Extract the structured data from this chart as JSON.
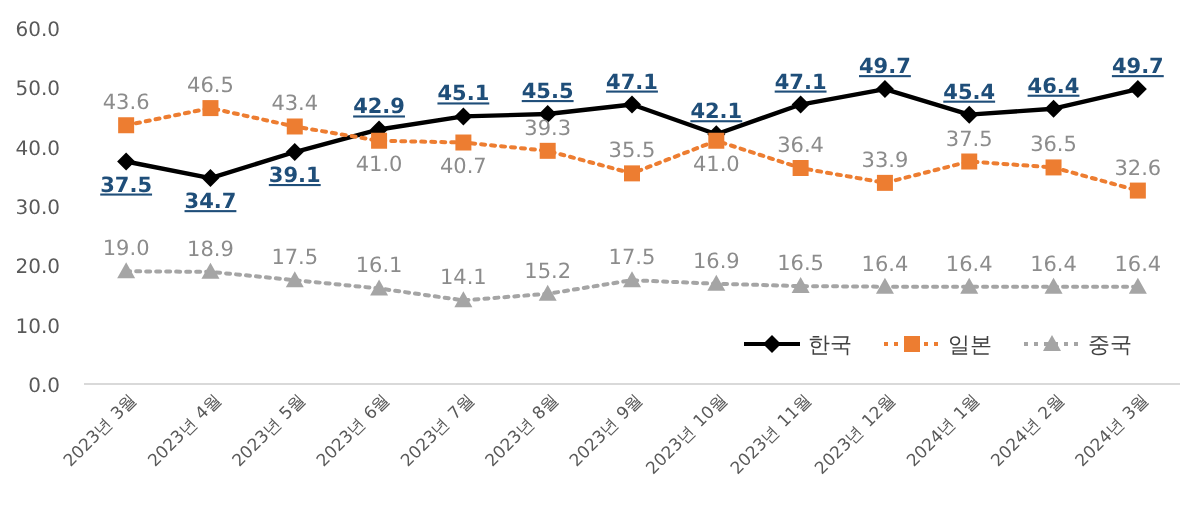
{
  "chart_data": {
    "type": "line",
    "categories": [
      "2023년 3월",
      "2023년 4월",
      "2023년 5월",
      "2023년 6월",
      "2023년 7월",
      "2023년 8월",
      "2023년 9월",
      "2023년 10월",
      "2023년 11월",
      "2023년 12월",
      "2024년 1월",
      "2024년 2월",
      "2024년 3월"
    ],
    "series": [
      {
        "name": "한국",
        "color": "#000000",
        "marker": "diamond",
        "line_style": "solid",
        "values": [
          37.5,
          34.7,
          39.1,
          42.9,
          45.1,
          45.5,
          47.1,
          42.1,
          47.1,
          49.7,
          45.4,
          46.4,
          49.7
        ],
        "value_labels": [
          "37.5",
          "34.7",
          "39.1",
          "42.9",
          "45.1",
          "45.5",
          "47.1",
          "42.1",
          "47.1",
          "49.7",
          "45.4",
          "46.4",
          "49.7"
        ]
      },
      {
        "name": "일본",
        "color": "#ed7d31",
        "marker": "square",
        "line_style": "dotted",
        "values": [
          43.6,
          46.5,
          43.4,
          41.0,
          40.7,
          39.3,
          35.5,
          41.0,
          36.4,
          33.9,
          37.5,
          36.5,
          32.6
        ],
        "value_labels": [
          "43.6",
          "46.5",
          "43.4",
          "41.0",
          "40.7",
          "39.3",
          "35.5",
          "41.0",
          "36.4",
          "33.9",
          "37.5",
          "36.5",
          "32.6"
        ]
      },
      {
        "name": "중국",
        "color": "#a5a5a5",
        "marker": "triangle",
        "line_style": "dotted",
        "values": [
          19.0,
          18.9,
          17.5,
          16.1,
          14.1,
          15.2,
          17.5,
          16.9,
          16.5,
          16.4,
          16.4,
          16.4,
          16.4
        ],
        "value_labels": [
          "19.0",
          "18.9",
          "17.5",
          "16.1",
          "14.1",
          "15.2",
          "17.5",
          "16.9",
          "16.5",
          "16.4",
          "16.4",
          "16.4",
          "16.4"
        ]
      }
    ],
    "ylim": [
      0,
      60
    ],
    "yticks": [
      {
        "value": 0,
        "label": "0.0"
      },
      {
        "value": 10,
        "label": "10.0"
      },
      {
        "value": 20,
        "label": "20.0"
      },
      {
        "value": 30,
        "label": "30.0"
      },
      {
        "value": 40,
        "label": "40.0"
      },
      {
        "value": 50,
        "label": "50.0"
      },
      {
        "value": 60,
        "label": "60.0"
      }
    ],
    "grid": false,
    "legend": "bottom right"
  }
}
